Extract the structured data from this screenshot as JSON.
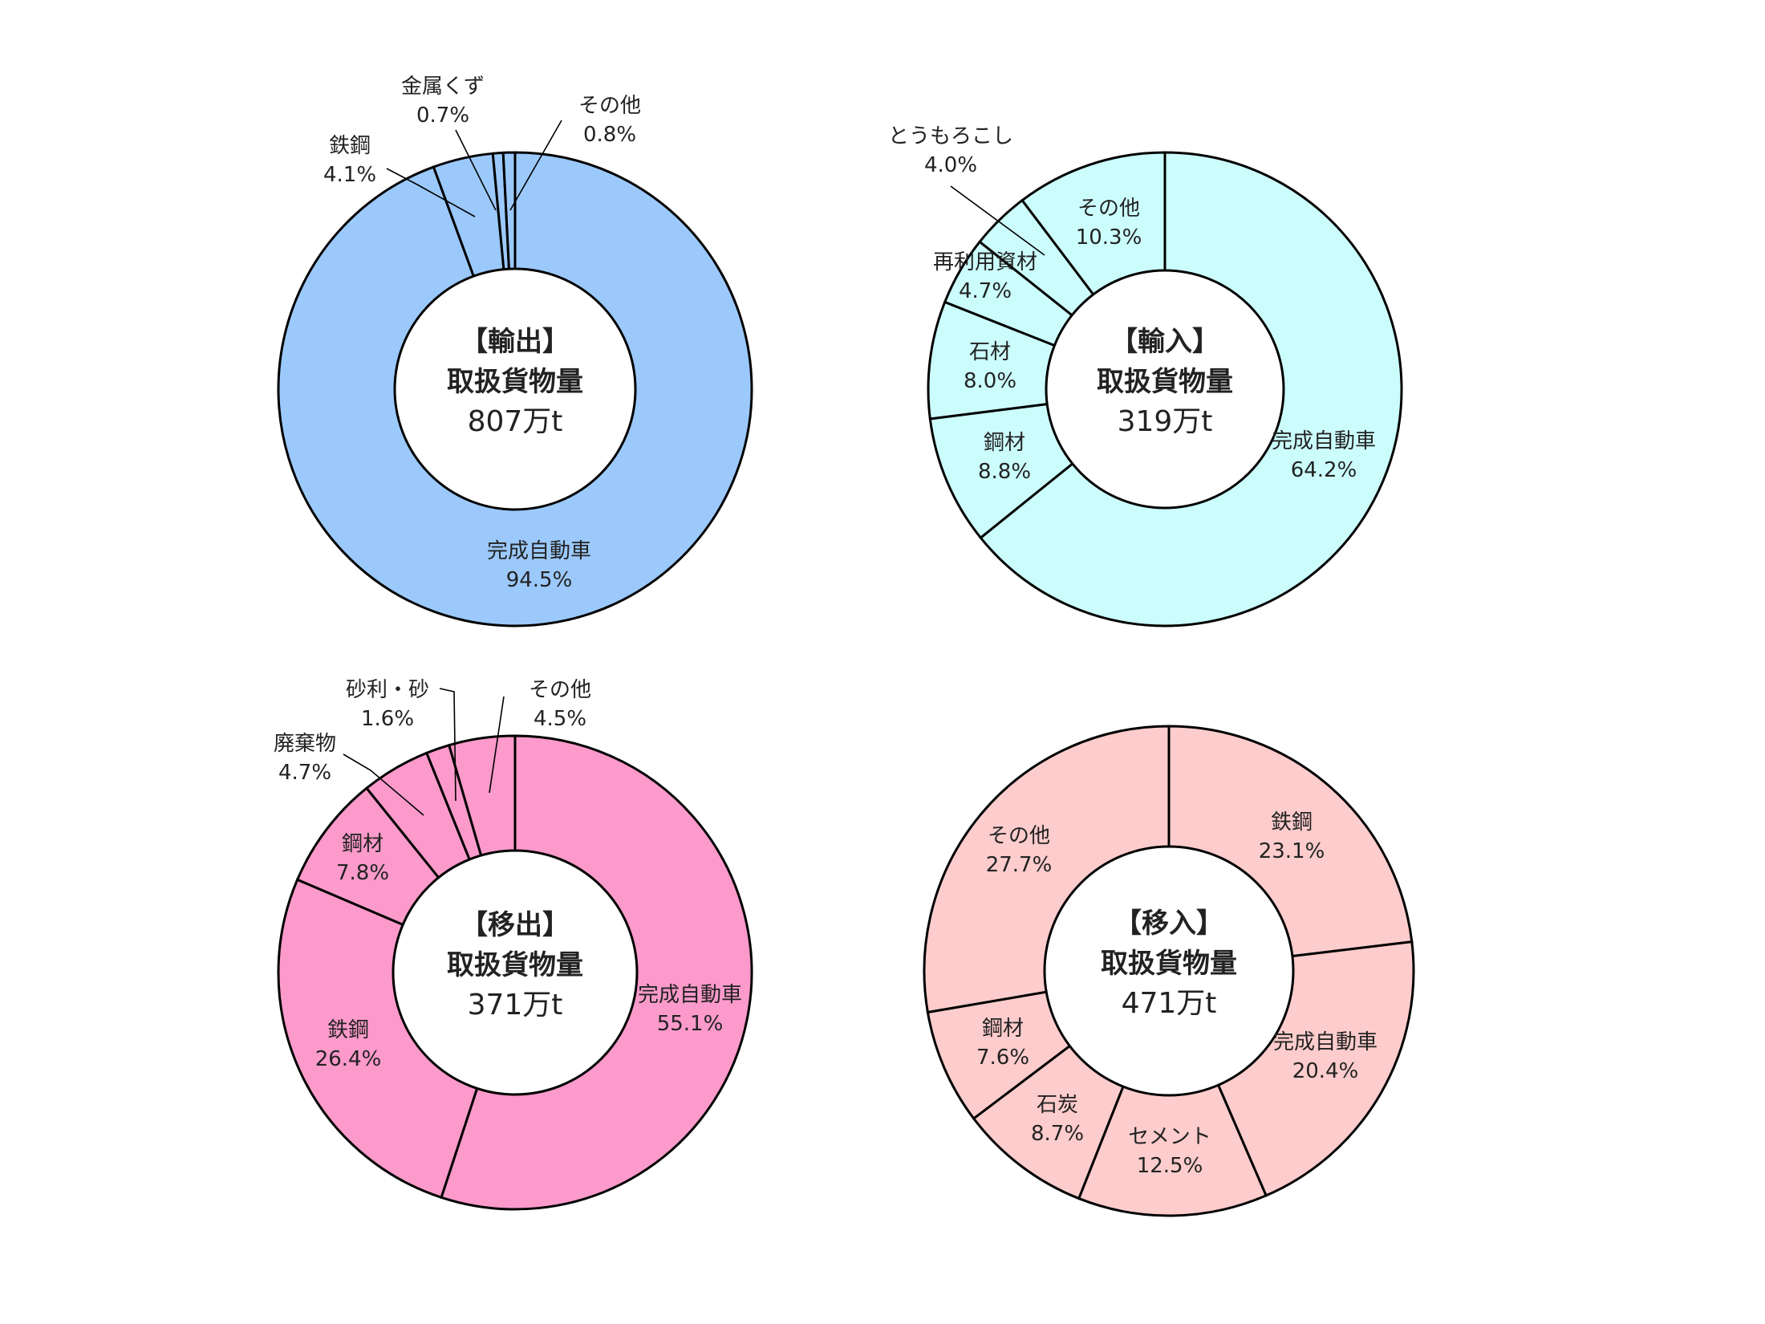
{
  "chart_data": [
    {
      "type": "pie",
      "center": {
        "line1": "【輸出】",
        "line2": "取扱貨物量",
        "line3": "807万t"
      },
      "slice_color": "#9cc9fb",
      "series": [
        {
          "name": "完成自動車",
          "value": 94.5,
          "value_label": "94.5%"
        },
        {
          "name": "鉄鋼",
          "value": 4.1,
          "value_label": "4.1%"
        },
        {
          "name": "金属くず",
          "value": 0.7,
          "value_label": "0.7%"
        },
        {
          "name": "その他",
          "value": 0.8,
          "value_label": "0.8%"
        }
      ]
    },
    {
      "type": "pie",
      "center": {
        "line1": "【輸入】",
        "line2": "取扱貨物量",
        "line3": "319万t"
      },
      "slice_color": "#ccfdfd",
      "series": [
        {
          "name": "完成自動車",
          "value": 64.2,
          "value_label": "64.2%"
        },
        {
          "name": "鋼材",
          "value": 8.8,
          "value_label": "8.8%"
        },
        {
          "name": "石材",
          "value": 8.0,
          "value_label": "8.0%"
        },
        {
          "name": "再利用資材",
          "value": 4.7,
          "value_label": "4.7%"
        },
        {
          "name": "とうもろこし",
          "value": 4.0,
          "value_label": "4.0%"
        },
        {
          "name": "その他",
          "value": 10.3,
          "value_label": "10.3%"
        }
      ]
    },
    {
      "type": "pie",
      "center": {
        "line1": "【移出】",
        "line2": "取扱貨物量",
        "line3": "371万t"
      },
      "slice_color": "#fb9acb",
      "series": [
        {
          "name": "完成自動車",
          "value": 55.1,
          "value_label": "55.1%"
        },
        {
          "name": "鉄鋼",
          "value": 26.4,
          "value_label": "26.4%"
        },
        {
          "name": "鋼材",
          "value": 7.8,
          "value_label": "7.8%"
        },
        {
          "name": "廃棄物",
          "value": 4.7,
          "value_label": "4.7%"
        },
        {
          "name": "砂利・砂",
          "value": 1.6,
          "value_label": "1.6%"
        },
        {
          "name": "その他",
          "value": 4.5,
          "value_label": "4.5%"
        }
      ]
    },
    {
      "type": "pie",
      "center": {
        "line1": "【移入】",
        "line2": "取扱貨物量",
        "line3": "471万t"
      },
      "slice_color": "#fdcccc",
      "series": [
        {
          "name": "鉄鋼",
          "value": 23.1,
          "value_label": "23.1%"
        },
        {
          "name": "完成自動車",
          "value": 20.4,
          "value_label": "20.4%"
        },
        {
          "name": "セメント",
          "value": 12.5,
          "value_label": "12.5%"
        },
        {
          "name": "石炭",
          "value": 8.7,
          "value_label": "8.7%"
        },
        {
          "name": "鋼材",
          "value": 7.6,
          "value_label": "7.6%"
        },
        {
          "name": "その他",
          "value": 27.7,
          "value_label": "27.7%"
        }
      ]
    }
  ]
}
